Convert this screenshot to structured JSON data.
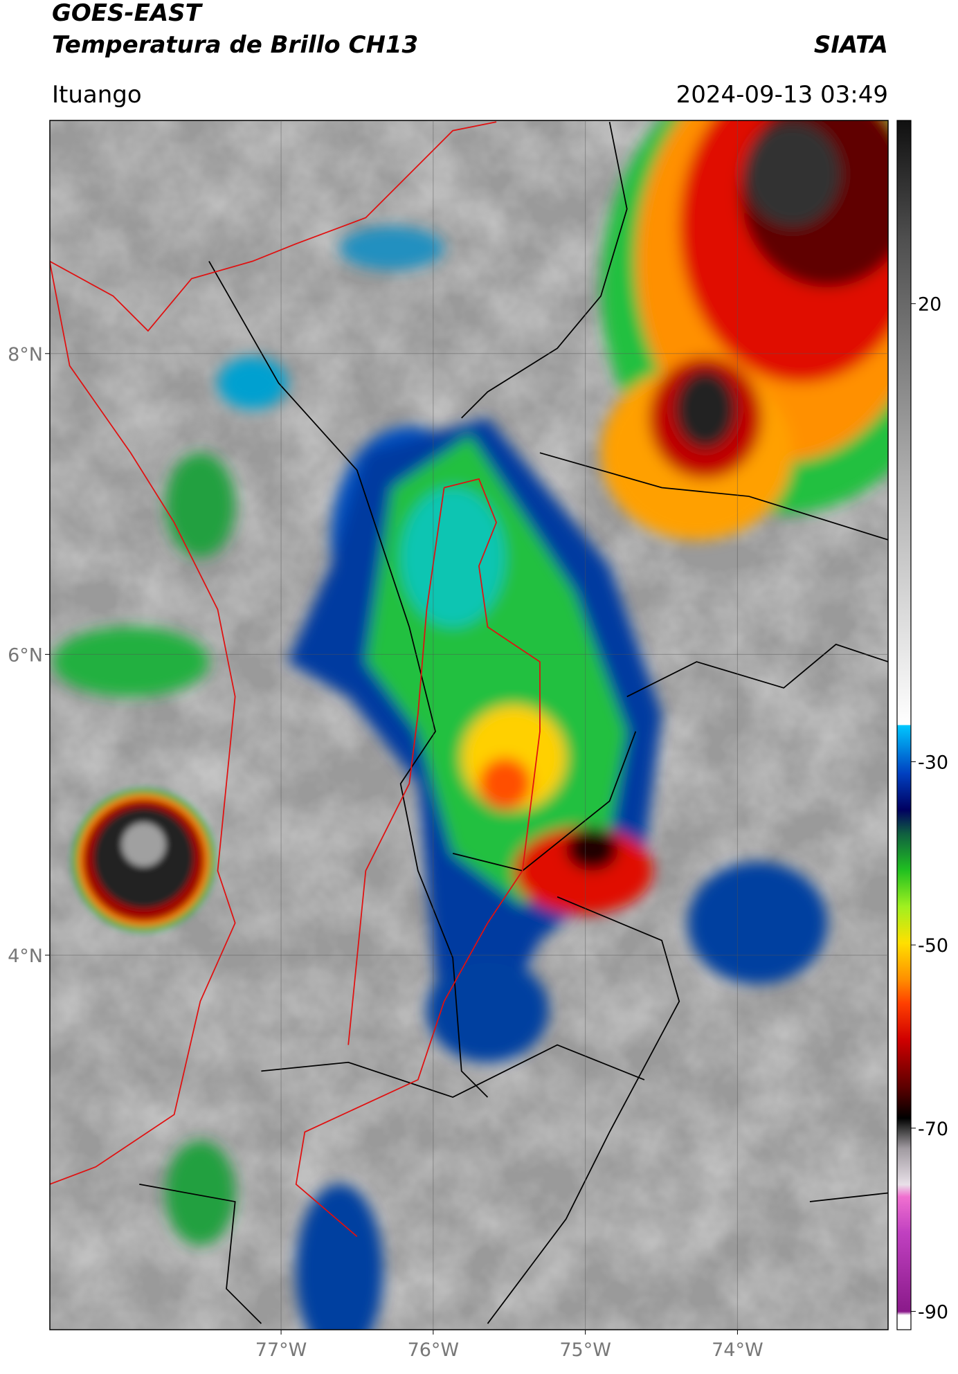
{
  "header": {
    "title": "GOES-EAST",
    "subtitle": "Temperatura de Brillo CH13",
    "source": "SIATA",
    "location": "Ituango",
    "datetime": "2024-09-13 03:49"
  },
  "map": {
    "latlim": [
      1.51,
      9.55
    ],
    "lonlim": [
      -78.52,
      -73.01
    ],
    "lat_ticks": [
      {
        "value": 8,
        "label": "8°N"
      },
      {
        "value": 6,
        "label": "6°N"
      },
      {
        "value": 4,
        "label": "4°N"
      }
    ],
    "lon_ticks": [
      {
        "value": -77,
        "label": "77°W"
      },
      {
        "value": -76,
        "label": "76°W"
      },
      {
        "value": -75,
        "label": "75°W"
      },
      {
        "value": -74,
        "label": "74°W"
      }
    ],
    "grid": true
  },
  "colorbar": {
    "lim": [
      -92,
      40
    ],
    "ticks": [
      20,
      -30,
      -50,
      -70,
      -90
    ]
  }
}
